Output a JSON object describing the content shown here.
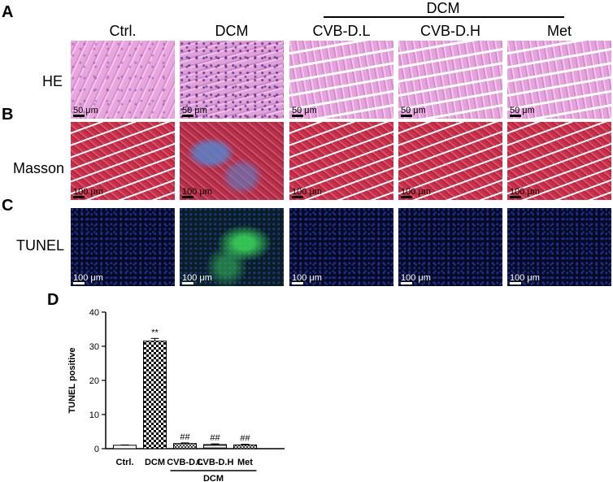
{
  "panels": {
    "A": "A",
    "B": "B",
    "C": "C",
    "D": "D"
  },
  "group_header": "DCM",
  "columns": [
    "Ctrl.",
    "DCM",
    "CVB-D.L",
    "CVB-D.H",
    "Met"
  ],
  "rows": [
    {
      "label": "HE",
      "scale": "50 μm"
    },
    {
      "label": "Masson",
      "scale": "100 μm"
    },
    {
      "label": "TUNEL",
      "scale": "100 μm"
    }
  ],
  "chart_data": {
    "type": "bar",
    "categories": [
      "Ctrl.",
      "DCM",
      "CVB-D.L",
      "CVB-D.H",
      "Met"
    ],
    "values": [
      1.0,
      31.5,
      1.5,
      1.2,
      1.1
    ],
    "errors": [
      0.1,
      0.8,
      0.2,
      0.2,
      0.2
    ],
    "annotations": [
      "",
      "**",
      "##",
      "##",
      "##"
    ],
    "ylabel": "TUNEL positive",
    "xlabel": "",
    "group_label": "DCM",
    "ylim": [
      0,
      40
    ],
    "yticks": [
      0,
      10,
      20,
      30,
      40
    ],
    "fills": [
      "white",
      "checker",
      "crosshatch",
      "hlines",
      "crosshatch"
    ]
  }
}
